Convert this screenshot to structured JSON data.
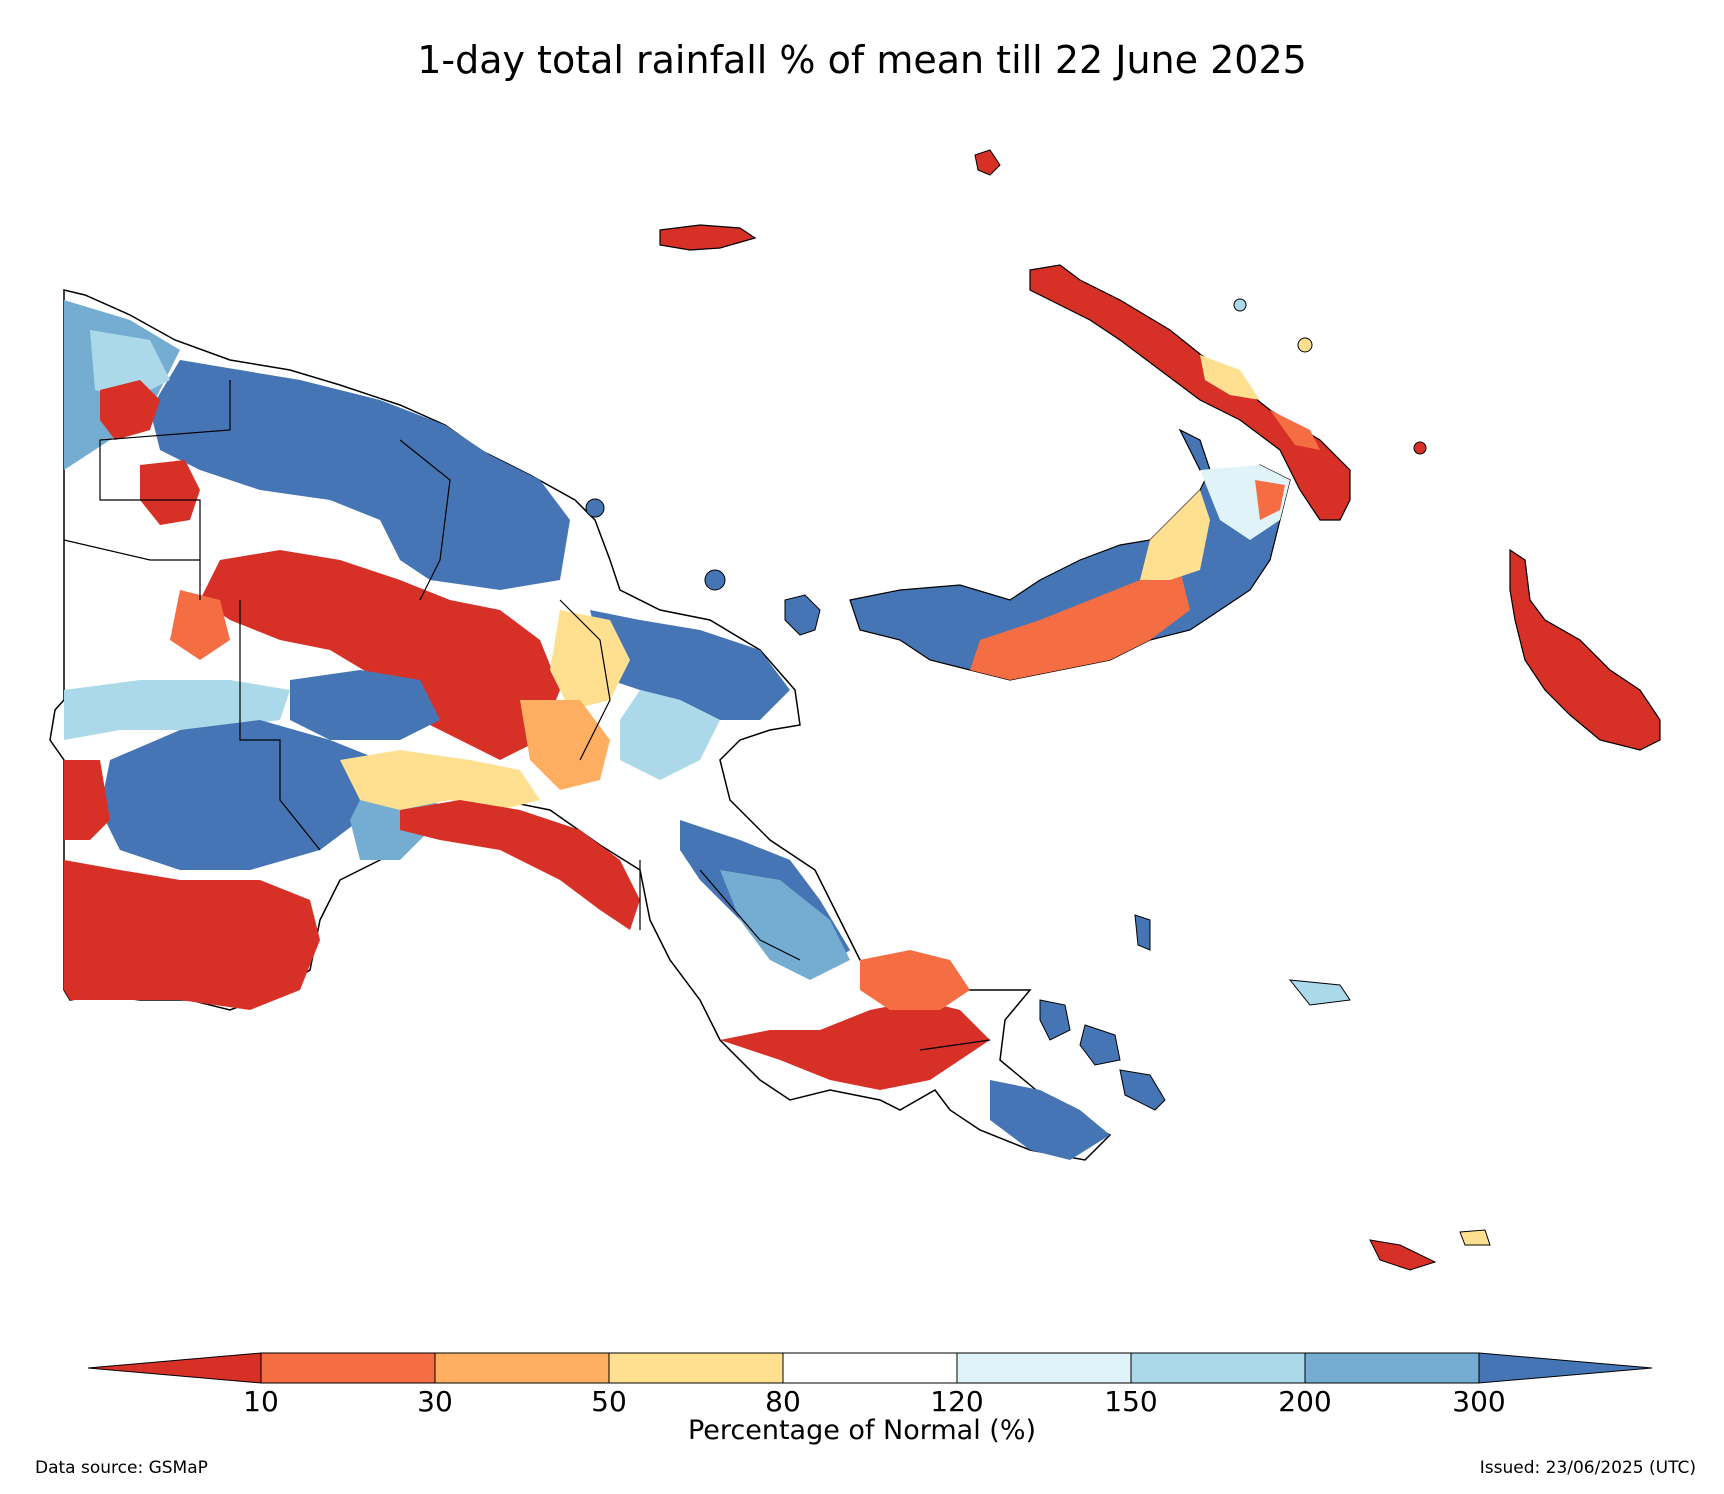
{
  "title": "1-day total rainfall % of mean till 22 June 2025",
  "colorbar": {
    "label": "Percentage of Normal (%)",
    "ticks": [
      "10",
      "30",
      "50",
      "80",
      "120",
      "150",
      "200",
      "300"
    ],
    "bins": [
      {
        "range": "<10",
        "color": "#d73027"
      },
      {
        "range": "10-30",
        "color": "#f46d43"
      },
      {
        "range": "30-50",
        "color": "#fdae61"
      },
      {
        "range": "50-80",
        "color": "#fee090"
      },
      {
        "range": "80-120",
        "color": "#ffffff"
      },
      {
        "range": "120-150",
        "color": "#e0f3f8"
      },
      {
        "range": "150-200",
        "color": "#abd9e9"
      },
      {
        "range": "200-300",
        "color": "#74add1"
      },
      {
        "range": ">300",
        "color": "#4575b4"
      }
    ]
  },
  "footer": {
    "source": "Data source: GSMaP",
    "issued": "Issued: 23/06/2025 (UTC)"
  }
}
